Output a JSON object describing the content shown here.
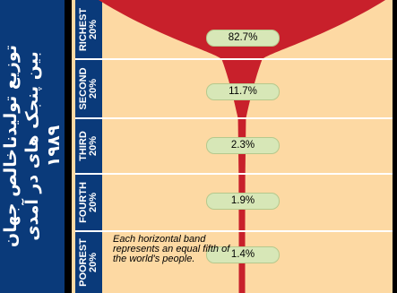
{
  "side_title_lines": [
    "توزیع تولیدناخالص جهان",
    "بین پنجک های در آمدی",
    "۱۹۸۹"
  ],
  "chart_data": {
    "type": "area",
    "title": "توزیع تولیدناخالص جهان بین پنجک های در آمدی ۱۹۸۹",
    "categories": [
      "RICHEST 20%",
      "SECOND 20%",
      "THIRD 20%",
      "FOURTH 20%",
      "POOREST 20%"
    ],
    "values": [
      82.7,
      11.7,
      2.3,
      1.9,
      1.4
    ],
    "value_labels": [
      "82.7%",
      "11.7%",
      "2.3%",
      "1.9%",
      "1.4%"
    ],
    "band_labels": [
      [
        "RICHEST",
        "20%"
      ],
      [
        "SECOND",
        "20%"
      ],
      [
        "THIRD",
        "20%"
      ],
      [
        "FOURTH",
        "20%"
      ],
      [
        "POOREST",
        "20%"
      ]
    ],
    "note": "Each horizontal band represents an equal fifth of the world's people."
  },
  "colors": {
    "funnel": "#c8202b",
    "band_label_bg": "#0a3a7a",
    "chart_bg": "#fdd9a3",
    "pill": "#d7e7b7"
  }
}
